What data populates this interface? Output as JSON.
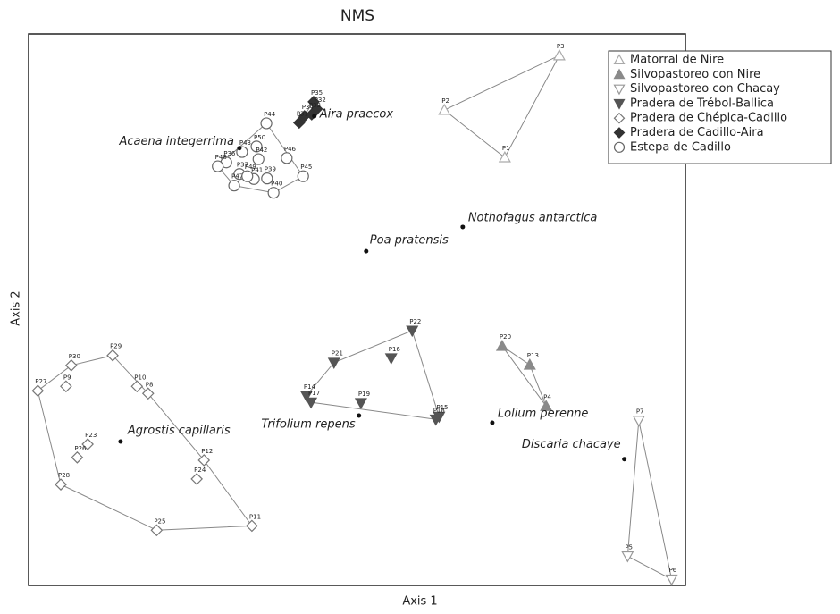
{
  "chart_data": {
    "type": "scatter",
    "title": "NMS",
    "x_label": "Axis 1",
    "y_label": "Axis 2",
    "xlim": [
      0,
      100
    ],
    "ylim": [
      0,
      100
    ],
    "legend": "upper right",
    "hulls": true,
    "series": [
      {
        "name": "Matorral de Nire",
        "marker": "triangle-up",
        "filled": false,
        "color": "#aaaaaa",
        "labels": [
          "P3",
          "P2",
          "P1"
        ],
        "x": [
          80.8,
          63.3,
          72.5
        ],
        "y": [
          96.1,
          86.2,
          77.6
        ]
      },
      {
        "name": "Silvopastoreo con Nire",
        "marker": "triangle-up",
        "filled": true,
        "color": "#8a8a8a",
        "labels": [
          "P20",
          "P13",
          "P4"
        ],
        "x": [
          72.1,
          76.3,
          78.8
        ],
        "y": [
          43.4,
          40.0,
          32.5
        ]
      },
      {
        "name": "Silvopastoreo con Chacay",
        "marker": "triangle-down",
        "filled": false,
        "color": "#999999",
        "labels": [
          "P7",
          "P5",
          "P6"
        ],
        "x": [
          92.9,
          91.2,
          97.9
        ],
        "y": [
          29.9,
          5.3,
          1.1
        ]
      },
      {
        "name": "Pradera de Trébol-Ballica",
        "marker": "triangle-down",
        "filled": true,
        "color": "#555555",
        "labels": [
          "P22",
          "P16",
          "P21",
          "P14",
          "P17",
          "P19",
          "P15",
          "P18"
        ],
        "x": [
          58.4,
          55.2,
          46.5,
          42.3,
          43.0,
          50.6,
          62.5,
          62.0
        ],
        "y": [
          46.2,
          41.2,
          40.4,
          34.4,
          33.2,
          33.1,
          30.6,
          30.1
        ]
      },
      {
        "name": "Pradera de Chépica-Cadillo",
        "marker": "diamond",
        "filled": false,
        "color": "#777777",
        "labels": [
          "P29",
          "P30",
          "P9",
          "P27",
          "P10",
          "P8",
          "P23",
          "P26",
          "P12",
          "P24",
          "P28",
          "P25",
          "P11"
        ],
        "x": [
          12.8,
          6.5,
          5.7,
          1.4,
          16.5,
          18.2,
          9.0,
          7.4,
          26.7,
          25.6,
          4.9,
          19.5,
          34.0
        ],
        "y": [
          41.7,
          39.9,
          36.1,
          35.3,
          36.1,
          34.8,
          25.6,
          23.2,
          22.7,
          19.3,
          18.3,
          10.0,
          10.8
        ]
      },
      {
        "name": "Pradera de Cadillo-Aira",
        "marker": "diamond",
        "filled": true,
        "color": "#333333",
        "labels": [
          "P35",
          "P32",
          "P33",
          "P34",
          "P31"
        ],
        "x": [
          43.4,
          43.9,
          43.1,
          42.0,
          41.2
        ],
        "y": [
          87.7,
          86.4,
          85.4,
          85.1,
          83.9
        ]
      },
      {
        "name": "Estepa de Cadillo",
        "marker": "circle",
        "filled": false,
        "color": "#666666",
        "labels": [
          "P44",
          "P50",
          "P43",
          "P42",
          "P36",
          "P48",
          "P37",
          "P46",
          "P41",
          "P39",
          "P47",
          "P45",
          "P49",
          "P40"
        ],
        "x": [
          36.2,
          34.7,
          32.5,
          35.0,
          30.1,
          28.8,
          32.1,
          39.3,
          34.3,
          36.3,
          31.3,
          41.8,
          33.3,
          37.3
        ],
        "y": [
          83.8,
          79.6,
          78.6,
          77.3,
          76.7,
          76.0,
          74.6,
          77.5,
          73.7,
          73.8,
          72.5,
          74.2,
          74.2,
          71.2
        ]
      }
    ],
    "species": {
      "names": [
        "Aira praecox",
        "Acaena integerrima",
        "Nothofagus antarctica",
        "Poa pratensis",
        "Trifolium repens",
        "Lolium perenne",
        "Agrostis capillaris",
        "Discaria chacaye"
      ],
      "x": [
        43.5,
        32.1,
        66.1,
        51.4,
        50.3,
        70.6,
        14.0,
        90.7
      ],
      "y": [
        85.1,
        79.3,
        65.0,
        60.6,
        30.8,
        29.5,
        26.1,
        22.9
      ]
    }
  }
}
